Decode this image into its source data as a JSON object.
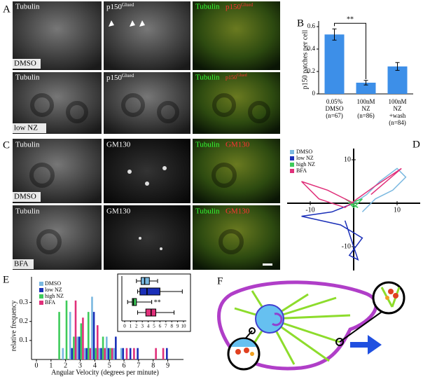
{
  "panel_labels": [
    "A",
    "B",
    "C",
    "D",
    "E",
    "F"
  ],
  "panel_a": {
    "tubulin": "Tubulin",
    "p150": "p150",
    "glued": "Glued",
    "conditions": [
      "DMSO",
      "low NZ"
    ]
  },
  "panel_c": {
    "tubulin": "Tubulin",
    "gm130": "GM130",
    "conditions": [
      "DMSO",
      "BFA"
    ]
  },
  "chart_data": [
    {
      "type": "bar",
      "ylabel": "p150 patches per cell",
      "categories": [
        "0.05%\nDMSO\n(n=67)",
        "100nM\nNZ\n(n=86)",
        "100nM\nNZ\n+wash\n(n=84)"
      ],
      "values": [
        0.53,
        0.1,
        0.245
      ],
      "errors": [
        0.05,
        0.02,
        0.035
      ],
      "color": "#3d8fe8",
      "ylim": [
        0,
        0.65
      ],
      "yticks": [
        0,
        0.2,
        0.4,
        0.6
      ],
      "annotation": "**"
    },
    {
      "type": "tracks",
      "legend": "top-left",
      "xlim": [
        -15,
        15
      ],
      "ylim": [
        -15,
        15
      ],
      "xticks": [
        -10,
        10
      ],
      "yticks": [
        -10,
        10
      ],
      "series": [
        {
          "name": "DMSO",
          "color": "#7ab8e0",
          "x": [
            0,
            3,
            6,
            10,
            12,
            9,
            5,
            2
          ],
          "values": [
            0,
            2,
            5,
            8,
            6,
            3,
            1,
            -2
          ]
        },
        {
          "name": "low NZ",
          "color": "#1a2fb8",
          "x": [
            0,
            -5,
            -12,
            -3,
            2,
            -1,
            1,
            -2
          ],
          "values": [
            0,
            -2,
            -3,
            -5,
            -8,
            -12,
            -13,
            -4
          ]
        },
        {
          "name": "high NZ",
          "color": "#3ecb5a",
          "x": [
            0,
            -2,
            1,
            -1,
            2,
            0,
            -1,
            1
          ],
          "values": [
            0,
            1,
            -1,
            0,
            1,
            -1,
            0,
            0
          ]
        },
        {
          "name": "BFA",
          "color": "#e0307a",
          "x": [
            0,
            -6,
            -12,
            -8,
            -2,
            5,
            11,
            4
          ],
          "values": [
            0,
            3,
            5,
            1,
            -1,
            4,
            8,
            2
          ]
        }
      ]
    },
    {
      "type": "histogram",
      "xlabel": "Angular Velocity (degrees per minute)",
      "ylabel": "relative frequency",
      "legend": "top-left",
      "xlim": [
        0,
        9.5
      ],
      "ylim": [
        0,
        0.35
      ],
      "xticks": [
        0,
        1,
        2,
        3,
        4,
        5,
        6,
        7,
        8,
        9
      ],
      "yticks": [
        0.1,
        0.2,
        0.3
      ],
      "x": [
        1.5,
        2,
        2.5,
        3,
        3.5,
        4,
        4.5,
        5,
        5.5,
        6,
        6.5,
        7,
        7.5,
        8,
        8.5,
        9
      ],
      "series": [
        {
          "name": "DMSO",
          "color": "#7ab8e0",
          "values": [
            0,
            0.06,
            0.25,
            0.12,
            0.06,
            0.33,
            0.06,
            0.12,
            0.06,
            0.06,
            0,
            0,
            0,
            0,
            0,
            0
          ]
        },
        {
          "name": "low NZ",
          "color": "#1a2fb8",
          "values": [
            0,
            0,
            0.06,
            0.12,
            0.06,
            0.25,
            0.06,
            0.06,
            0.12,
            0.06,
            0.06,
            0.06,
            0,
            0,
            0,
            0.06
          ]
        },
        {
          "name": "high NZ",
          "color": "#3ecb5a",
          "values": [
            0.25,
            0.31,
            0.12,
            0.19,
            0.25,
            0.06,
            0.12,
            0.06,
            0,
            0,
            0,
            0,
            0,
            0,
            0,
            0
          ]
        },
        {
          "name": "BFA",
          "color": "#e0307a",
          "values": [
            0,
            0,
            0.31,
            0.22,
            0.06,
            0.18,
            0.06,
            0.06,
            0,
            0.06,
            0.06,
            0,
            0,
            0.06,
            0.06,
            0
          ]
        }
      ]
    },
    {
      "type": "box",
      "xlim": [
        0,
        10
      ],
      "xticks": [
        0,
        1,
        2,
        3,
        4,
        5,
        6,
        7,
        8,
        9,
        10
      ],
      "annotation": "**",
      "series": [
        {
          "color": "#7ab8e0",
          "whislo": 2,
          "q1": 2.8,
          "med": 3.4,
          "q3": 4.2,
          "whishi": 5.6
        },
        {
          "color": "#1a2fb8",
          "whislo": 2.2,
          "q1": 2.6,
          "med": 3.8,
          "q3": 6,
          "whishi": 9.8
        },
        {
          "color": "#3ecb5a",
          "whislo": 0.5,
          "q1": 1.3,
          "med": 1.5,
          "q3": 2,
          "whishi": 4.6
        },
        {
          "color": "#e0307a",
          "whislo": 2.2,
          "q1": 3.6,
          "med": 4.5,
          "q3": 5.3,
          "whishi": 8.4
        }
      ]
    }
  ]
}
